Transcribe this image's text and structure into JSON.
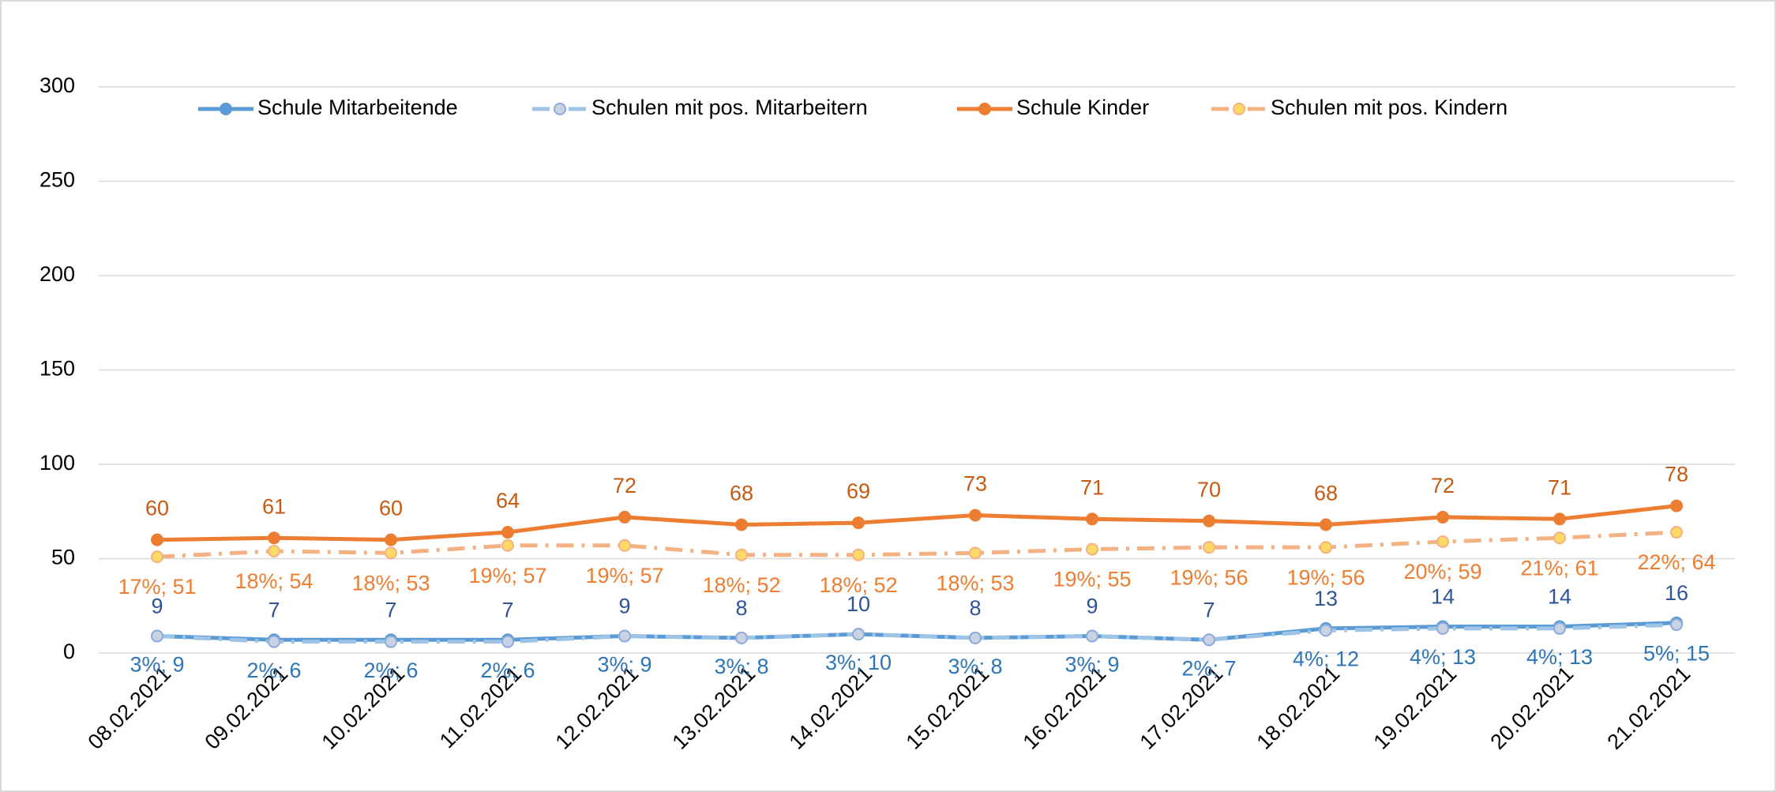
{
  "chart_data": {
    "type": "line",
    "categories": [
      "08.02.2021",
      "09.02.2021",
      "10.02.2021",
      "11.02.2021",
      "12.02.2021",
      "13.02.2021",
      "14.02.2021",
      "15.02.2021",
      "16.02.2021",
      "17.02.2021",
      "18.02.2021",
      "19.02.2021",
      "20.02.2021",
      "21.02.2021"
    ],
    "series": [
      {
        "name": "Schule Mitarbeitende",
        "color": "#5b9bd5",
        "label_color": "#2f5597",
        "marker_fill": "#5b9bd5",
        "dashed": false,
        "values": [
          9,
          7,
          7,
          7,
          9,
          8,
          10,
          8,
          9,
          7,
          13,
          14,
          14,
          16
        ]
      },
      {
        "name": "Schulen mit pos. Mitarbeitern",
        "color": "#9dc3e6",
        "label_color": "#2e75b6",
        "marker_fill": "#c9d3e3",
        "dashed": true,
        "values": [
          9,
          6,
          6,
          6,
          9,
          8,
          10,
          8,
          9,
          7,
          12,
          13,
          13,
          15
        ],
        "value_labels": [
          "3%; 9",
          "2%; 6",
          "2%; 6",
          "2%; 6",
          "3%; 9",
          "3%; 8",
          "3%; 10",
          "3%; 8",
          "3%; 9",
          "2%; 7",
          "4%; 12",
          "4%; 13",
          "4%; 13",
          "5%; 15"
        ]
      },
      {
        "name": "Schule Kinder",
        "color": "#ed7d31",
        "label_color": "#c55a11",
        "marker_fill": "#ed7d31",
        "dashed": false,
        "values": [
          60,
          61,
          60,
          64,
          72,
          68,
          69,
          73,
          71,
          70,
          68,
          72,
          71,
          78
        ]
      },
      {
        "name": "Schulen mit pos. Kindern",
        "color": "#f4b183",
        "label_color": "#ed7d31",
        "marker_fill": "#ffd966",
        "dashed": true,
        "values": [
          51,
          54,
          53,
          57,
          57,
          52,
          52,
          53,
          55,
          56,
          56,
          59,
          61,
          64
        ],
        "value_labels": [
          "17%; 51",
          "18%; 54",
          "18%; 53",
          "19%; 57",
          "19%; 57",
          "18%; 52",
          "18%; 52",
          "18%; 53",
          "19%; 55",
          "19%; 56",
          "19%; 56",
          "20%; 59",
          "21%; 61",
          "22%; 64"
        ]
      }
    ],
    "ylim": [
      0,
      300
    ],
    "yticks": [
      0,
      50,
      100,
      150,
      200,
      250,
      300
    ],
    "grid": true
  }
}
